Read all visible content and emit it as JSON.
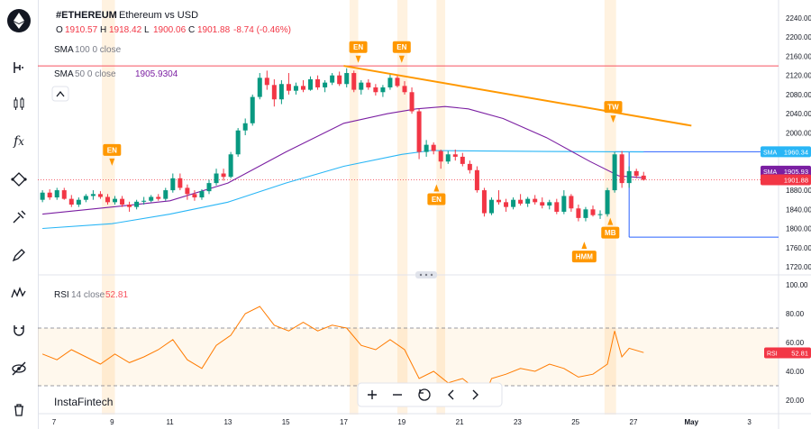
{
  "header": {
    "symbol": "#ETHEREUM",
    "description": "Ethereum vs USD",
    "ohlc": [
      {
        "k": "O",
        "v": "1910.57"
      },
      {
        "k": "H",
        "v": "1918.42"
      },
      {
        "k": "L",
        "v": "1900.06"
      },
      {
        "k": "C",
        "v": "1901.88"
      }
    ],
    "change": "-8.74 (-0.46%)"
  },
  "indicators": {
    "sma100": {
      "name": "SMA",
      "params": "100  0  close",
      "value": ""
    },
    "sma50": {
      "name": "SMA",
      "params": "50  0  close",
      "value": "1905.9304"
    },
    "rsi": {
      "name": "RSI",
      "params": "14  close",
      "value": "52.81"
    }
  },
  "watermark": "InstaFintech",
  "sidebar": {
    "tools": [
      "cursor-icon",
      "ruler-icon",
      "candles-icon",
      "fx-icon",
      "shapes-icon",
      "brush-icon",
      "pen-icon",
      "waves-icon",
      "magnet-icon",
      "eye-off-icon",
      "trash-icon"
    ]
  },
  "chart_data": {
    "type": "candlestick",
    "symbol": "#ETHEREUM",
    "price_axis": {
      "min": 1700,
      "max": 2260,
      "ticks": [
        1720,
        1760,
        1800,
        1840,
        1880,
        1920,
        1960,
        2000,
        2040,
        2080,
        2120,
        2160,
        2200,
        2240
      ]
    },
    "date_axis": {
      "labels": [
        "7",
        "9",
        "11",
        "13",
        "15",
        "17",
        "19",
        "21",
        "23",
        "25",
        "27",
        "May",
        "3"
      ]
    },
    "horizontal_lines": [
      {
        "price": 2140,
        "color": "#f7525f"
      },
      {
        "price": 1960.34,
        "color": "#2962ff"
      },
      {
        "price": 1782,
        "color": "#2962ff"
      }
    ],
    "trendline": {
      "from": {
        "date": "Apr 17",
        "price": 2140
      },
      "to": {
        "date": "Apr 29",
        "price": 2015
      },
      "color": "#ff9800"
    },
    "price_labels": [
      {
        "text": "SMA",
        "value": "1960.34",
        "color": "#29b6f6"
      },
      {
        "text": "SMA",
        "value": "1905.93",
        "color": "#7b1fa2"
      },
      {
        "text": "",
        "value": "1901.88",
        "color": "#f23645"
      }
    ],
    "markers": [
      {
        "text": "EN",
        "day": 9,
        "direction": "down",
        "price": 1920
      },
      {
        "text": "EN",
        "day": 17.5,
        "direction": "down",
        "price": 2135
      },
      {
        "text": "EN",
        "day": 19,
        "direction": "down",
        "price": 2135
      },
      {
        "text": "EN",
        "day": 20.2,
        "direction": "up",
        "price": 1900
      },
      {
        "text": "HMM",
        "day": 25.3,
        "direction": "up",
        "price": 1780
      },
      {
        "text": "MB",
        "day": 26.2,
        "direction": "up",
        "price": 1830
      },
      {
        "text": "TW",
        "day": 26.3,
        "direction": "down",
        "price": 2010
      }
    ],
    "candles": [
      {
        "d": 6.6,
        "o": 1860,
        "h": 1880,
        "l": 1855,
        "c": 1875
      },
      {
        "d": 6.85,
        "o": 1875,
        "h": 1882,
        "l": 1860,
        "c": 1865
      },
      {
        "d": 7.1,
        "o": 1865,
        "h": 1885,
        "l": 1860,
        "c": 1880
      },
      {
        "d": 7.35,
        "o": 1880,
        "h": 1885,
        "l": 1860,
        "c": 1862
      },
      {
        "d": 7.6,
        "o": 1862,
        "h": 1870,
        "l": 1845,
        "c": 1850
      },
      {
        "d": 7.85,
        "o": 1850,
        "h": 1865,
        "l": 1845,
        "c": 1860
      },
      {
        "d": 8.1,
        "o": 1860,
        "h": 1872,
        "l": 1855,
        "c": 1868
      },
      {
        "d": 8.35,
        "o": 1868,
        "h": 1880,
        "l": 1860,
        "c": 1872
      },
      {
        "d": 8.6,
        "o": 1872,
        "h": 1878,
        "l": 1862,
        "c": 1866
      },
      {
        "d": 8.85,
        "o": 1866,
        "h": 1872,
        "l": 1850,
        "c": 1855
      },
      {
        "d": 9.1,
        "o": 1855,
        "h": 1868,
        "l": 1850,
        "c": 1862
      },
      {
        "d": 9.35,
        "o": 1862,
        "h": 1868,
        "l": 1845,
        "c": 1850
      },
      {
        "d": 9.6,
        "o": 1850,
        "h": 1856,
        "l": 1835,
        "c": 1845
      },
      {
        "d": 9.85,
        "o": 1845,
        "h": 1860,
        "l": 1840,
        "c": 1856
      },
      {
        "d": 10.1,
        "o": 1856,
        "h": 1866,
        "l": 1850,
        "c": 1858
      },
      {
        "d": 10.35,
        "o": 1858,
        "h": 1870,
        "l": 1855,
        "c": 1866
      },
      {
        "d": 10.6,
        "o": 1866,
        "h": 1872,
        "l": 1858,
        "c": 1862
      },
      {
        "d": 10.85,
        "o": 1862,
        "h": 1885,
        "l": 1858,
        "c": 1880
      },
      {
        "d": 11.1,
        "o": 1880,
        "h": 1915,
        "l": 1875,
        "c": 1905
      },
      {
        "d": 11.35,
        "o": 1905,
        "h": 1915,
        "l": 1880,
        "c": 1885
      },
      {
        "d": 11.6,
        "o": 1885,
        "h": 1892,
        "l": 1860,
        "c": 1872
      },
      {
        "d": 11.85,
        "o": 1872,
        "h": 1880,
        "l": 1858,
        "c": 1865
      },
      {
        "d": 12.1,
        "o": 1865,
        "h": 1882,
        "l": 1860,
        "c": 1878
      },
      {
        "d": 12.35,
        "o": 1878,
        "h": 1902,
        "l": 1872,
        "c": 1895
      },
      {
        "d": 12.6,
        "o": 1895,
        "h": 1925,
        "l": 1890,
        "c": 1915
      },
      {
        "d": 12.85,
        "o": 1915,
        "h": 1925,
        "l": 1900,
        "c": 1908
      },
      {
        "d": 13.1,
        "o": 1908,
        "h": 1960,
        "l": 1905,
        "c": 1955
      },
      {
        "d": 13.35,
        "o": 1955,
        "h": 2010,
        "l": 1950,
        "c": 2005
      },
      {
        "d": 13.6,
        "o": 2005,
        "h": 2030,
        "l": 1995,
        "c": 2020
      },
      {
        "d": 13.85,
        "o": 2020,
        "h": 2080,
        "l": 2015,
        "c": 2075
      },
      {
        "d": 14.1,
        "o": 2075,
        "h": 2125,
        "l": 2070,
        "c": 2115
      },
      {
        "d": 14.35,
        "o": 2115,
        "h": 2130,
        "l": 2090,
        "c": 2100
      },
      {
        "d": 14.6,
        "o": 2100,
        "h": 2112,
        "l": 2055,
        "c": 2070
      },
      {
        "d": 14.85,
        "o": 2070,
        "h": 2110,
        "l": 2060,
        "c": 2102
      },
      {
        "d": 15.1,
        "o": 2102,
        "h": 2125,
        "l": 2080,
        "c": 2088
      },
      {
        "d": 15.35,
        "o": 2088,
        "h": 2105,
        "l": 2080,
        "c": 2098
      },
      {
        "d": 15.6,
        "o": 2098,
        "h": 2110,
        "l": 2085,
        "c": 2090
      },
      {
        "d": 15.85,
        "o": 2090,
        "h": 2118,
        "l": 2088,
        "c": 2112
      },
      {
        "d": 16.1,
        "o": 2112,
        "h": 2120,
        "l": 2090,
        "c": 2095
      },
      {
        "d": 16.35,
        "o": 2095,
        "h": 2110,
        "l": 2085,
        "c": 2105
      },
      {
        "d": 16.6,
        "o": 2105,
        "h": 2125,
        "l": 2100,
        "c": 2120
      },
      {
        "d": 16.85,
        "o": 2120,
        "h": 2128,
        "l": 2098,
        "c": 2102
      },
      {
        "d": 17.1,
        "o": 2102,
        "h": 2135,
        "l": 2095,
        "c": 2125
      },
      {
        "d": 17.35,
        "o": 2125,
        "h": 2130,
        "l": 2085,
        "c": 2090
      },
      {
        "d": 17.6,
        "o": 2090,
        "h": 2110,
        "l": 2080,
        "c": 2105
      },
      {
        "d": 17.85,
        "o": 2105,
        "h": 2112,
        "l": 2090,
        "c": 2095
      },
      {
        "d": 18.1,
        "o": 2095,
        "h": 2102,
        "l": 2078,
        "c": 2085
      },
      {
        "d": 18.35,
        "o": 2085,
        "h": 2100,
        "l": 2075,
        "c": 2095
      },
      {
        "d": 18.6,
        "o": 2095,
        "h": 2125,
        "l": 2090,
        "c": 2115
      },
      {
        "d": 18.85,
        "o": 2115,
        "h": 2120,
        "l": 2095,
        "c": 2098
      },
      {
        "d": 19.1,
        "o": 2098,
        "h": 2108,
        "l": 2080,
        "c": 2085
      },
      {
        "d": 19.35,
        "o": 2085,
        "h": 2095,
        "l": 2040,
        "c": 2045
      },
      {
        "d": 19.6,
        "o": 2045,
        "h": 2050,
        "l": 1945,
        "c": 1960
      },
      {
        "d": 19.85,
        "o": 1960,
        "h": 1985,
        "l": 1950,
        "c": 1975
      },
      {
        "d": 20.1,
        "o": 1975,
        "h": 1980,
        "l": 1955,
        "c": 1962
      },
      {
        "d": 20.35,
        "o": 1962,
        "h": 1965,
        "l": 1925,
        "c": 1940
      },
      {
        "d": 20.6,
        "o": 1940,
        "h": 1962,
        "l": 1935,
        "c": 1955
      },
      {
        "d": 20.85,
        "o": 1955,
        "h": 1965,
        "l": 1942,
        "c": 1950
      },
      {
        "d": 21.1,
        "o": 1950,
        "h": 1958,
        "l": 1930,
        "c": 1935
      },
      {
        "d": 21.35,
        "o": 1935,
        "h": 1942,
        "l": 1915,
        "c": 1922
      },
      {
        "d": 21.6,
        "o": 1922,
        "h": 1930,
        "l": 1875,
        "c": 1880
      },
      {
        "d": 21.85,
        "o": 1880,
        "h": 1885,
        "l": 1825,
        "c": 1832
      },
      {
        "d": 22.1,
        "o": 1832,
        "h": 1865,
        "l": 1828,
        "c": 1860
      },
      {
        "d": 22.35,
        "o": 1860,
        "h": 1880,
        "l": 1850,
        "c": 1855
      },
      {
        "d": 22.6,
        "o": 1855,
        "h": 1862,
        "l": 1835,
        "c": 1845
      },
      {
        "d": 22.85,
        "o": 1845,
        "h": 1865,
        "l": 1840,
        "c": 1860
      },
      {
        "d": 23.1,
        "o": 1860,
        "h": 1872,
        "l": 1848,
        "c": 1852
      },
      {
        "d": 23.35,
        "o": 1852,
        "h": 1866,
        "l": 1845,
        "c": 1862
      },
      {
        "d": 23.6,
        "o": 1862,
        "h": 1870,
        "l": 1850,
        "c": 1855
      },
      {
        "d": 23.85,
        "o": 1855,
        "h": 1865,
        "l": 1842,
        "c": 1848
      },
      {
        "d": 24.1,
        "o": 1848,
        "h": 1860,
        "l": 1840,
        "c": 1855
      },
      {
        "d": 24.35,
        "o": 1855,
        "h": 1862,
        "l": 1830,
        "c": 1835
      },
      {
        "d": 24.6,
        "o": 1835,
        "h": 1880,
        "l": 1830,
        "c": 1868
      },
      {
        "d": 24.85,
        "o": 1868,
        "h": 1872,
        "l": 1835,
        "c": 1842
      },
      {
        "d": 25.1,
        "o": 1842,
        "h": 1850,
        "l": 1815,
        "c": 1822
      },
      {
        "d": 25.35,
        "o": 1822,
        "h": 1845,
        "l": 1815,
        "c": 1840
      },
      {
        "d": 25.6,
        "o": 1840,
        "h": 1848,
        "l": 1825,
        "c": 1828
      },
      {
        "d": 25.85,
        "o": 1828,
        "h": 1838,
        "l": 1820,
        "c": 1830
      },
      {
        "d": 26.1,
        "o": 1830,
        "h": 1885,
        "l": 1825,
        "c": 1880
      },
      {
        "d": 26.35,
        "o": 1880,
        "h": 1960,
        "l": 1875,
        "c": 1955
      },
      {
        "d": 26.6,
        "o": 1955,
        "h": 1962,
        "l": 1885,
        "c": 1895
      },
      {
        "d": 26.85,
        "o": 1895,
        "h": 1930,
        "l": 1885,
        "c": 1920
      },
      {
        "d": 27.1,
        "o": 1920,
        "h": 1925,
        "l": 1905,
        "c": 1910
      },
      {
        "d": 27.35,
        "o": 1910.57,
        "h": 1918.42,
        "l": 1900.06,
        "c": 1901.88
      }
    ],
    "sma50": [
      [
        6.6,
        1830
      ],
      [
        9,
        1845
      ],
      [
        11,
        1858
      ],
      [
        13,
        1895
      ],
      [
        15,
        1960
      ],
      [
        17,
        2020
      ],
      [
        18.5,
        2040
      ],
      [
        19.5,
        2050
      ],
      [
        20.5,
        2055
      ],
      [
        21.3,
        2050
      ],
      [
        22.5,
        2030
      ],
      [
        24,
        1990
      ],
      [
        25.5,
        1940
      ],
      [
        26.5,
        1910
      ],
      [
        27.35,
        1906
      ]
    ],
    "sma100": [
      [
        6.6,
        1800
      ],
      [
        9,
        1810
      ],
      [
        11,
        1830
      ],
      [
        13,
        1855
      ],
      [
        15,
        1895
      ],
      [
        17,
        1930
      ],
      [
        19,
        1955
      ],
      [
        20,
        1963
      ],
      [
        22,
        1962
      ],
      [
        24,
        1961
      ],
      [
        27.35,
        1960
      ]
    ],
    "rsi": {
      "ticks": [
        20,
        40,
        60,
        80,
        100
      ],
      "bands": [
        30,
        70
      ],
      "last": 52.81,
      "values": [
        [
          6.6,
          52
        ],
        [
          7.1,
          48
        ],
        [
          7.6,
          55
        ],
        [
          8.1,
          50
        ],
        [
          8.6,
          45
        ],
        [
          9.1,
          52
        ],
        [
          9.6,
          46
        ],
        [
          10.1,
          50
        ],
        [
          10.6,
          55
        ],
        [
          11.1,
          62
        ],
        [
          11.6,
          48
        ],
        [
          12.1,
          42
        ],
        [
          12.6,
          58
        ],
        [
          13.1,
          65
        ],
        [
          13.6,
          80
        ],
        [
          14.1,
          85
        ],
        [
          14.6,
          72
        ],
        [
          15.1,
          68
        ],
        [
          15.6,
          74
        ],
        [
          16.1,
          68
        ],
        [
          16.6,
          72
        ],
        [
          17.1,
          70
        ],
        [
          17.6,
          58
        ],
        [
          18.1,
          55
        ],
        [
          18.6,
          62
        ],
        [
          19.1,
          55
        ],
        [
          19.6,
          35
        ],
        [
          20.1,
          40
        ],
        [
          20.6,
          32
        ],
        [
          21.1,
          35
        ],
        [
          21.6,
          27
        ],
        [
          21.85,
          22
        ],
        [
          22.1,
          35
        ],
        [
          22.6,
          38
        ],
        [
          23.1,
          42
        ],
        [
          23.6,
          40
        ],
        [
          24.1,
          45
        ],
        [
          24.6,
          42
        ],
        [
          25.1,
          36
        ],
        [
          25.6,
          38
        ],
        [
          26.1,
          45
        ],
        [
          26.35,
          68
        ],
        [
          26.6,
          50
        ],
        [
          26.85,
          56
        ],
        [
          27.35,
          53
        ]
      ]
    }
  }
}
